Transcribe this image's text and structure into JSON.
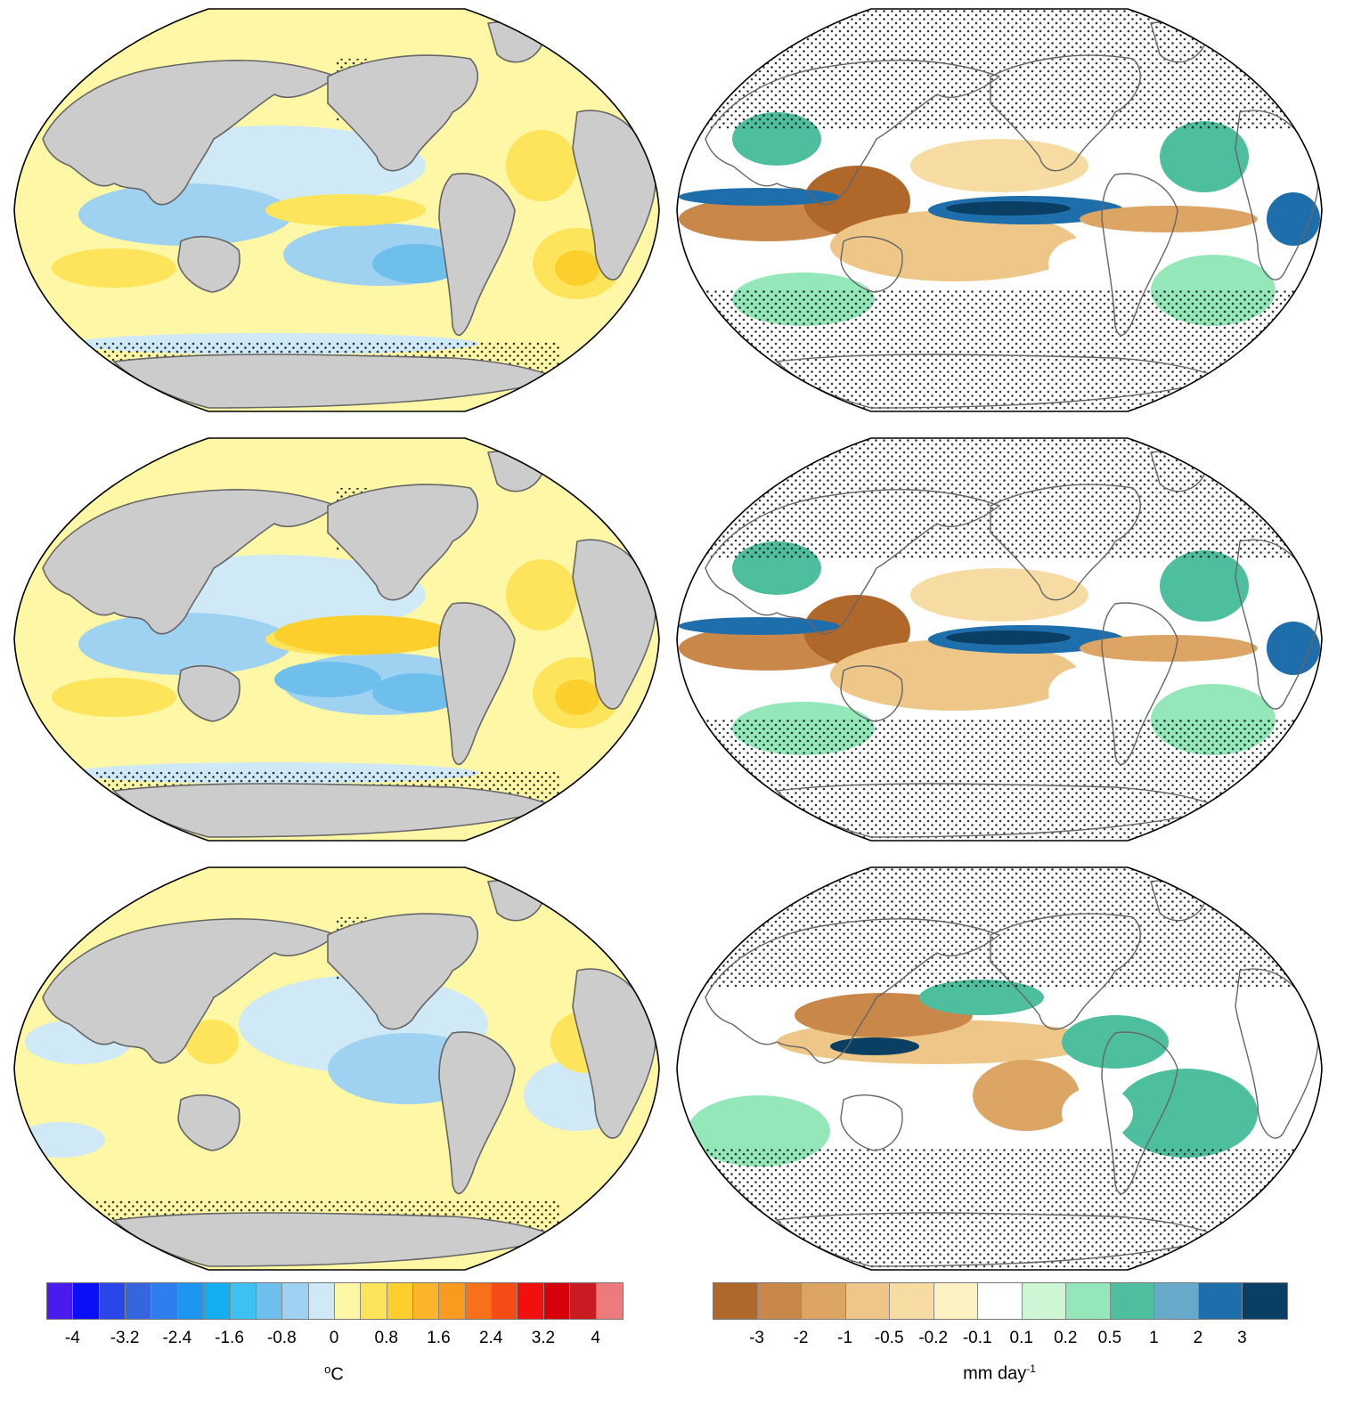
{
  "panels": [
    {
      "id": "sst-1",
      "variable": "sst"
    },
    {
      "id": "pr-1",
      "variable": "precip"
    },
    {
      "id": "sst-2",
      "variable": "sst"
    },
    {
      "id": "pr-2",
      "variable": "precip"
    },
    {
      "id": "sst-3",
      "variable": "sst"
    },
    {
      "id": "pr-3",
      "variable": "precip"
    }
  ],
  "colorbars": {
    "sst": {
      "colors": [
        "#4b1aef",
        "#0a0ff5",
        "#2a46e8",
        "#3566de",
        "#2f7ef0",
        "#1f95f2",
        "#14adef",
        "#3fc0f2",
        "#6fbfec",
        "#9fd2f0",
        "#cfe9f6",
        "#fdf7a6",
        "#fde45a",
        "#fdcf2d",
        "#fcb42a",
        "#fa9a1f",
        "#f7711a",
        "#f44c14",
        "#f2100f",
        "#d5000a",
        "#c81c22",
        "#ee7b7b"
      ],
      "tick_labels": [
        "-4",
        "-3.2",
        "-2.4",
        "-1.6",
        "-0.8",
        "0",
        "0.8",
        "1.6",
        "2.4",
        "3.2",
        "4"
      ],
      "unit_base": "C",
      "unit_degree": "o"
    },
    "precip": {
      "colors": [
        "#b0682a",
        "#c9874a",
        "#dca563",
        "#eec687",
        "#f6dca3",
        "#fdf3c2",
        "#ffffff",
        "#cdf6d4",
        "#94e7b8",
        "#4ebf9e",
        "#67a9c8",
        "#1f6eac",
        "#0a3f63"
      ],
      "tick_labels": [
        "-3",
        "-2",
        "-1",
        "-0.5",
        "-0.2",
        "-0.1",
        "0.1",
        "0.2",
        "0.5",
        "1",
        "2",
        "3"
      ],
      "unit_base": "mm day",
      "unit_exp": "-1"
    }
  },
  "style": {
    "land": "#cccccc",
    "coast": "#666666",
    "border": "#000000"
  }
}
